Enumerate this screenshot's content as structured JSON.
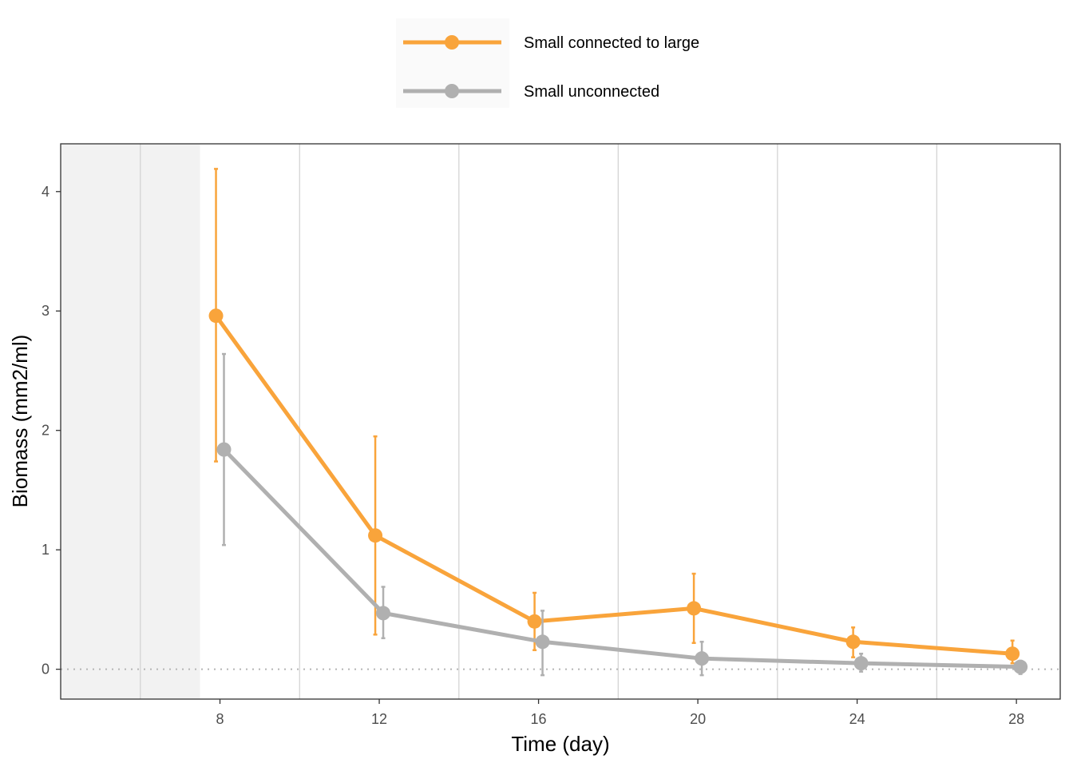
{
  "chart_data": {
    "type": "line",
    "xlabel": "Time (day)",
    "ylabel": "Biomass (mm2/ml)",
    "x_ticks": [
      8,
      12,
      16,
      20,
      24,
      28
    ],
    "y_ticks": [
      0,
      1,
      2,
      3,
      4
    ],
    "xlim": [
      4.0,
      29.1
    ],
    "ylim": [
      -0.25,
      4.4
    ],
    "shaded_region": [
      4.0,
      7.5
    ],
    "reference_line_y": 0,
    "legend_position": "top",
    "series": [
      {
        "name": "Small connected to large",
        "color": "#F9A43B",
        "x": [
          7.9,
          11.9,
          15.9,
          19.9,
          23.9,
          27.9
        ],
        "values": [
          2.96,
          1.12,
          0.4,
          0.51,
          0.23,
          0.13
        ],
        "error_low": [
          1.74,
          0.29,
          0.16,
          0.22,
          0.1,
          0.05
        ],
        "error_high": [
          4.19,
          1.95,
          0.64,
          0.8,
          0.35,
          0.24
        ]
      },
      {
        "name": "Small unconnected",
        "color": "#B0B0B0",
        "x": [
          8.1,
          12.1,
          16.1,
          20.1,
          24.1,
          28.1
        ],
        "values": [
          1.84,
          0.47,
          0.23,
          0.09,
          0.05,
          0.02
        ],
        "error_low": [
          1.04,
          0.26,
          -0.05,
          -0.05,
          -0.02,
          -0.04
        ],
        "error_high": [
          2.64,
          0.69,
          0.49,
          0.23,
          0.13,
          0.07
        ]
      }
    ]
  }
}
